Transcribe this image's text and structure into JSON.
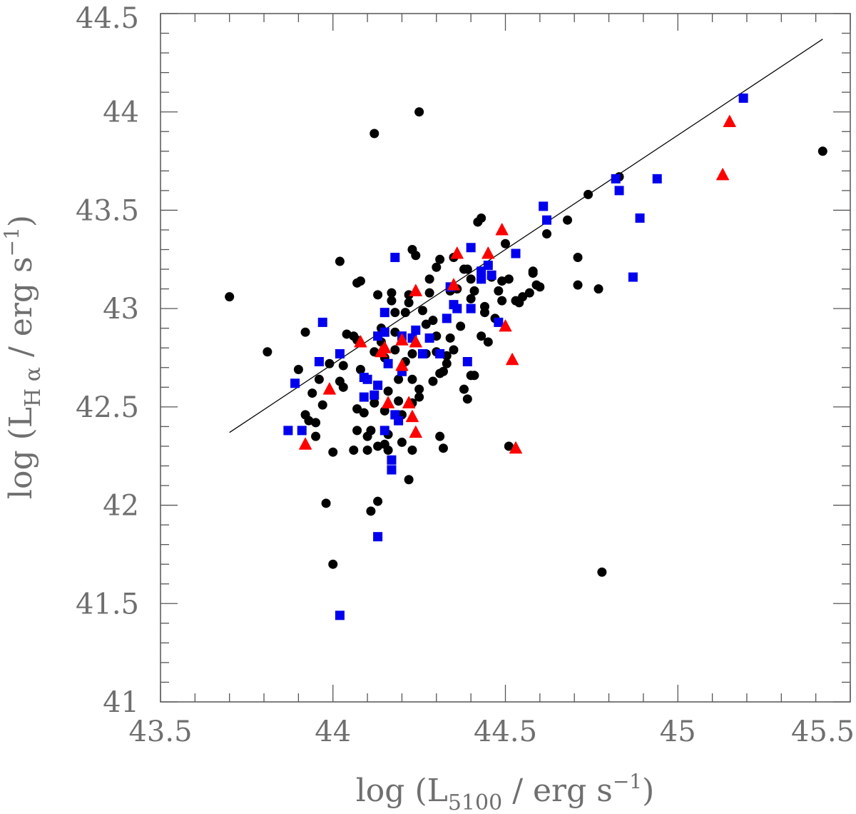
{
  "chart_data": {
    "type": "scatter",
    "title": "",
    "xlabel": {
      "prefix": "log (L",
      "sub": "5100",
      "suffix": " / erg s",
      "sup": "−1",
      "close": ")"
    },
    "ylabel": {
      "prefix": "log (L",
      "sub": "H α",
      "suffix": " / erg s",
      "sup": "−1",
      "close": ")"
    },
    "xlim": [
      43.5,
      45.5
    ],
    "ylim": [
      41,
      44.5
    ],
    "xticks": [
      43.5,
      44,
      44.5,
      45,
      45.5
    ],
    "xtick_labels": [
      "43.5",
      "44",
      "44.5",
      "45",
      "45.5"
    ],
    "yticks": [
      41,
      41.5,
      42,
      42.5,
      43,
      43.5,
      44,
      44.5
    ],
    "ytick_labels": [
      "41",
      "41.5",
      "42",
      "42.5",
      "43",
      "43.5",
      "44",
      "44.5"
    ],
    "grid": false,
    "legend": "none",
    "fit_line": {
      "x": [
        43.7,
        45.42
      ],
      "y": [
        42.37,
        44.37
      ],
      "color": "#000000"
    },
    "series": [
      {
        "marker": "circle",
        "color": "#000000",
        "points": [
          [
            43.7,
            43.06
          ],
          [
            43.81,
            42.78
          ],
          [
            43.92,
            42.88
          ],
          [
            43.93,
            42.43
          ],
          [
            43.9,
            42.69
          ],
          [
            43.95,
            42.42
          ],
          [
            43.94,
            42.57
          ],
          [
            43.96,
            42.64
          ],
          [
            43.97,
            42.51
          ],
          [
            43.92,
            42.46
          ],
          [
            43.95,
            42.35
          ],
          [
            43.99,
            42.72
          ],
          [
            44.0,
            42.27
          ],
          [
            44.02,
            43.24
          ],
          [
            44.03,
            42.6
          ],
          [
            44.03,
            42.71
          ],
          [
            44.04,
            42.87
          ],
          [
            44.02,
            42.63
          ],
          [
            43.98,
            42.01
          ],
          [
            44.0,
            41.7
          ],
          [
            44.06,
            42.86
          ],
          [
            44.07,
            42.84
          ],
          [
            44.06,
            42.28
          ],
          [
            44.07,
            42.49
          ],
          [
            44.08,
            42.69
          ],
          [
            44.08,
            43.14
          ],
          [
            44.07,
            43.13
          ],
          [
            44.07,
            42.38
          ],
          [
            44.09,
            42.47
          ],
          [
            44.1,
            42.35
          ],
          [
            44.1,
            42.28
          ],
          [
            44.12,
            42.52
          ],
          [
            44.11,
            42.38
          ],
          [
            44.12,
            43.89
          ],
          [
            44.13,
            43.07
          ],
          [
            44.12,
            42.78
          ],
          [
            44.11,
            41.97
          ],
          [
            44.13,
            42.02
          ],
          [
            44.13,
            42.3
          ],
          [
            44.15,
            42.31
          ],
          [
            44.14,
            42.9
          ],
          [
            44.14,
            42.83
          ],
          [
            44.15,
            42.75
          ],
          [
            44.15,
            42.48
          ],
          [
            44.16,
            42.36
          ],
          [
            44.16,
            42.28
          ],
          [
            44.16,
            42.58
          ],
          [
            44.17,
            43.08
          ],
          [
            44.17,
            43.04
          ],
          [
            44.18,
            42.98
          ],
          [
            44.18,
            42.88
          ],
          [
            44.18,
            42.79
          ],
          [
            44.19,
            42.64
          ],
          [
            44.19,
            42.53
          ],
          [
            44.2,
            42.46
          ],
          [
            44.2,
            42.32
          ],
          [
            44.21,
            42.73
          ],
          [
            44.21,
            42.98
          ],
          [
            44.22,
            43.07
          ],
          [
            44.22,
            43.03
          ],
          [
            44.23,
            42.85
          ],
          [
            44.23,
            42.77
          ],
          [
            44.23,
            42.64
          ],
          [
            44.23,
            42.52
          ],
          [
            44.23,
            42.28
          ],
          [
            44.22,
            42.13
          ],
          [
            44.23,
            43.3
          ],
          [
            44.24,
            43.27
          ],
          [
            44.25,
            44.0
          ],
          [
            44.25,
            42.59
          ],
          [
            44.25,
            42.55
          ],
          [
            44.26,
            42.99
          ],
          [
            44.27,
            42.92
          ],
          [
            44.27,
            42.77
          ],
          [
            44.28,
            43.15
          ],
          [
            44.28,
            43.08
          ],
          [
            44.29,
            42.94
          ],
          [
            44.29,
            42.63
          ],
          [
            44.3,
            43.21
          ],
          [
            44.3,
            42.86
          ],
          [
            44.3,
            42.78
          ],
          [
            44.31,
            43.25
          ],
          [
            44.31,
            42.67
          ],
          [
            44.31,
            42.35
          ],
          [
            44.32,
            42.29
          ],
          [
            44.32,
            42.68
          ],
          [
            44.33,
            42.76
          ],
          [
            44.33,
            42.72
          ],
          [
            44.34,
            43.09
          ],
          [
            44.34,
            42.85
          ],
          [
            44.35,
            42.79
          ],
          [
            44.35,
            43.26
          ],
          [
            44.36,
            43.1
          ],
          [
            44.37,
            42.91
          ],
          [
            44.38,
            43.2
          ],
          [
            44.38,
            42.59
          ],
          [
            44.39,
            42.54
          ],
          [
            44.39,
            43.2
          ],
          [
            44.4,
            43.15
          ],
          [
            44.4,
            42.66
          ],
          [
            44.4,
            43.05
          ],
          [
            44.41,
            42.66
          ],
          [
            44.41,
            43.09
          ],
          [
            44.42,
            43.44
          ],
          [
            44.43,
            43.46
          ],
          [
            44.43,
            43.15
          ],
          [
            44.43,
            42.86
          ],
          [
            44.44,
            43.01
          ],
          [
            44.44,
            42.98
          ],
          [
            44.45,
            42.83
          ],
          [
            44.46,
            43.16
          ],
          [
            44.47,
            42.95
          ],
          [
            44.48,
            43.09
          ],
          [
            44.49,
            43.14
          ],
          [
            44.49,
            43.04
          ],
          [
            44.5,
            43.33
          ],
          [
            44.51,
            43.15
          ],
          [
            44.51,
            42.3
          ],
          [
            44.53,
            43.04
          ],
          [
            44.54,
            43.03
          ],
          [
            44.55,
            43.06
          ],
          [
            44.57,
            43.08
          ],
          [
            44.58,
            43.19
          ],
          [
            44.58,
            43.18
          ],
          [
            44.59,
            43.12
          ],
          [
            44.6,
            43.11
          ],
          [
            44.62,
            43.38
          ],
          [
            44.68,
            43.45
          ],
          [
            44.71,
            43.12
          ],
          [
            44.71,
            43.26
          ],
          [
            44.74,
            43.58
          ],
          [
            44.77,
            43.1
          ],
          [
            44.78,
            41.66
          ],
          [
            44.83,
            43.67
          ],
          [
            45.42,
            43.8
          ]
        ]
      },
      {
        "marker": "square",
        "color": "#0000ee",
        "points": [
          [
            43.87,
            42.38
          ],
          [
            43.89,
            42.62
          ],
          [
            43.91,
            42.38
          ],
          [
            43.96,
            42.73
          ],
          [
            43.97,
            42.93
          ],
          [
            44.02,
            42.77
          ],
          [
            44.02,
            41.44
          ],
          [
            44.09,
            42.65
          ],
          [
            44.1,
            42.64
          ],
          [
            44.09,
            42.55
          ],
          [
            44.12,
            42.56
          ],
          [
            44.13,
            42.86
          ],
          [
            44.13,
            42.61
          ],
          [
            44.13,
            41.84
          ],
          [
            44.15,
            42.98
          ],
          [
            44.15,
            42.88
          ],
          [
            44.15,
            42.38
          ],
          [
            44.16,
            42.72
          ],
          [
            44.17,
            42.23
          ],
          [
            44.17,
            42.18
          ],
          [
            44.18,
            43.26
          ],
          [
            44.18,
            42.46
          ],
          [
            44.19,
            42.43
          ],
          [
            44.2,
            42.86
          ],
          [
            44.2,
            42.68
          ],
          [
            44.23,
            42.85
          ],
          [
            44.24,
            42.89
          ],
          [
            44.26,
            42.77
          ],
          [
            44.28,
            42.85
          ],
          [
            44.31,
            42.77
          ],
          [
            44.33,
            42.95
          ],
          [
            44.34,
            43.11
          ],
          [
            44.35,
            43.02
          ],
          [
            44.36,
            43.0
          ],
          [
            44.39,
            42.73
          ],
          [
            44.4,
            43.31
          ],
          [
            44.4,
            43.0
          ],
          [
            44.43,
            43.19
          ],
          [
            44.43,
            43.15
          ],
          [
            44.45,
            43.22
          ],
          [
            44.46,
            43.17
          ],
          [
            44.48,
            42.93
          ],
          [
            44.53,
            43.28
          ],
          [
            44.61,
            43.52
          ],
          [
            44.62,
            43.45
          ],
          [
            44.82,
            43.66
          ],
          [
            44.83,
            43.6
          ],
          [
            44.87,
            43.16
          ],
          [
            44.89,
            43.46
          ],
          [
            44.94,
            43.66
          ],
          [
            45.19,
            44.07
          ]
        ]
      },
      {
        "marker": "triangle",
        "color": "#ff0000",
        "points": [
          [
            43.92,
            42.31
          ],
          [
            43.99,
            42.59
          ],
          [
            44.08,
            42.83
          ],
          [
            44.14,
            42.78
          ],
          [
            44.15,
            42.8
          ],
          [
            44.16,
            42.52
          ],
          [
            44.2,
            42.71
          ],
          [
            44.2,
            42.84
          ],
          [
            44.22,
            42.52
          ],
          [
            44.23,
            42.45
          ],
          [
            44.24,
            42.37
          ],
          [
            44.24,
            43.09
          ],
          [
            44.24,
            42.83
          ],
          [
            44.35,
            43.12
          ],
          [
            44.36,
            43.28
          ],
          [
            44.45,
            43.28
          ],
          [
            44.49,
            43.4
          ],
          [
            44.5,
            42.91
          ],
          [
            44.52,
            42.74
          ],
          [
            44.53,
            42.29
          ],
          [
            45.13,
            43.68
          ],
          [
            45.15,
            43.95
          ]
        ]
      }
    ]
  }
}
